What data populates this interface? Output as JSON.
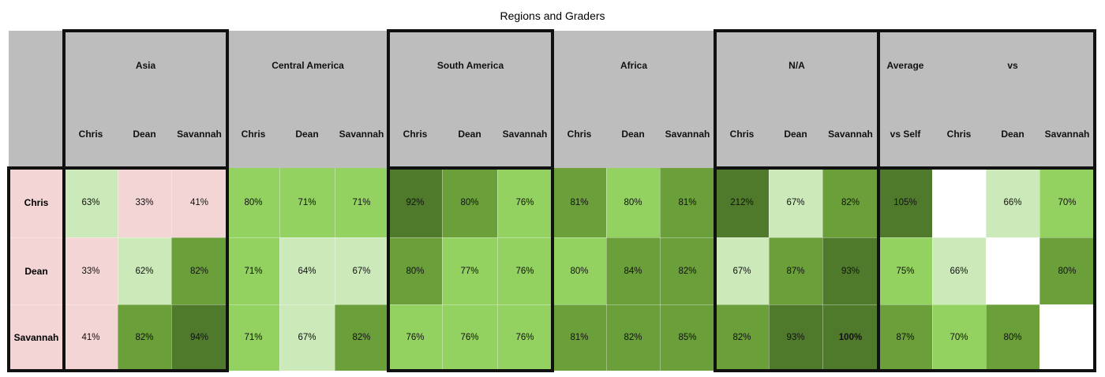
{
  "chart_data": {
    "type": "heatmap",
    "title": "Regions and Graders",
    "groups": [
      {
        "name": "Asia",
        "columns": [
          "Chris",
          "Dean",
          "Savannah"
        ]
      },
      {
        "name": "Central America",
        "columns": [
          "Chris",
          "Dean",
          "Savannah"
        ]
      },
      {
        "name": "South America",
        "columns": [
          "Chris",
          "Dean",
          "Savannah"
        ]
      },
      {
        "name": "Africa",
        "columns": [
          "Chris",
          "Dean",
          "Savannah"
        ]
      },
      {
        "name": "N/A",
        "columns": [
          "Chris",
          "Dean",
          "Savannah"
        ]
      },
      {
        "name": "Average vs",
        "header_parts": [
          "Average",
          "vs"
        ],
        "columns": [
          "vs Self",
          "Chris",
          "Dean",
          "Savannah"
        ]
      }
    ],
    "rows": [
      "Chris",
      "Dean",
      "Savannah"
    ],
    "values": [
      [
        63,
        33,
        41,
        80,
        71,
        71,
        92,
        80,
        76,
        81,
        80,
        81,
        212,
        67,
        82,
        105,
        null,
        66,
        70
      ],
      [
        33,
        62,
        82,
        71,
        64,
        67,
        80,
        77,
        76,
        80,
        84,
        82,
        67,
        87,
        93,
        75,
        66,
        null,
        80
      ],
      [
        41,
        82,
        94,
        71,
        67,
        82,
        76,
        76,
        76,
        81,
        82,
        85,
        82,
        93,
        100,
        87,
        70,
        80,
        null
      ]
    ],
    "value_suffix": "%",
    "colors": {
      "pink": "#f3d5d5",
      "light": "#cbe9b9",
      "mid": "#93d160",
      "dark": "#6a9f3a",
      "darker": "#4f7a2c",
      "white": "#ffffff"
    },
    "cell_colors": [
      [
        "light",
        "pink",
        "pink",
        "mid",
        "mid",
        "mid",
        "darker",
        "dark",
        "mid",
        "dark",
        "mid",
        "dark",
        "darker",
        "light",
        "dark",
        "darker",
        "white",
        "light",
        "mid"
      ],
      [
        "pink",
        "light",
        "dark",
        "mid",
        "light",
        "light",
        "dark",
        "mid",
        "mid",
        "mid",
        "dark",
        "dark",
        "light",
        "dark",
        "darker",
        "mid",
        "light",
        "white",
        "dark"
      ],
      [
        "pink",
        "dark",
        "darker",
        "mid",
        "light",
        "dark",
        "mid",
        "mid",
        "mid",
        "dark",
        "dark",
        "dark",
        "dark",
        "darker",
        "darker",
        "dark",
        "mid",
        "dark",
        "white"
      ]
    ],
    "bold_values": [
      [
        2,
        14
      ]
    ],
    "legend": "none",
    "grid": true
  }
}
